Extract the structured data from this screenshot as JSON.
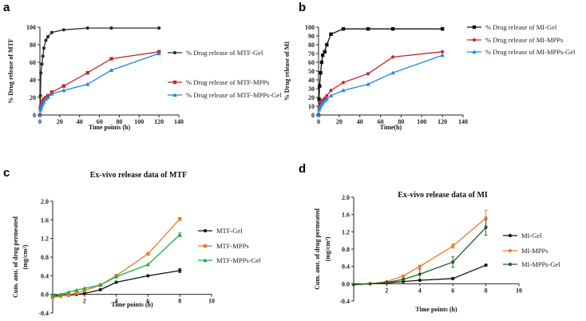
{
  "chart_data": [
    {
      "panel": "a",
      "type": "line",
      "title": "",
      "xlabel": "Time points (h)",
      "ylabel": "% Drug release of MTF",
      "xlim": [
        0,
        140
      ],
      "ylim": [
        0,
        100
      ],
      "xticks": [
        "0",
        "20",
        "40",
        "60",
        "80",
        "100",
        "120",
        "140"
      ],
      "yticks": [
        "0",
        "20",
        "40",
        "60",
        "80",
        "100"
      ],
      "series": [
        {
          "name": "% Drug release of MTF-Gel",
          "color": "#2b2b2b",
          "marker": "circle",
          "x": [
            0,
            0.5,
            1,
            2,
            3,
            4,
            6,
            8,
            12,
            24,
            48,
            72,
            120
          ],
          "y": [
            0,
            22,
            48,
            58,
            67,
            76,
            85,
            89,
            94,
            97,
            99,
            99,
            99
          ]
        },
        {
          "name": "% Drug release of MTF-MPPs",
          "color": "#c62828",
          "marker": "square",
          "x": [
            0,
            0.5,
            1,
            2,
            3,
            4,
            6,
            8,
            12,
            24,
            48,
            72,
            120
          ],
          "y": [
            0,
            8,
            10,
            14,
            16,
            18,
            20,
            22,
            26,
            33,
            48,
            64,
            72
          ]
        },
        {
          "name": "% Drug release of MTF-MPPs-Gel",
          "color": "#1e88e5",
          "marker": "triangle",
          "x": [
            0,
            0.5,
            1,
            2,
            3,
            4,
            6,
            8,
            12,
            24,
            48,
            72,
            120
          ],
          "y": [
            0,
            6,
            8,
            11,
            13,
            15,
            18,
            20,
            24,
            28,
            35,
            51,
            70
          ]
        }
      ]
    },
    {
      "panel": "b",
      "type": "line",
      "title": "",
      "xlabel": "Time(h)",
      "ylabel": "% Drug release of MI",
      "xlim": [
        0,
        140
      ],
      "ylim": [
        0,
        100
      ],
      "xticks": [
        "0",
        "20",
        "40",
        "60",
        "80",
        "100",
        "120",
        "140"
      ],
      "yticks": [
        "0",
        "10",
        "20",
        "30",
        "40",
        "50",
        "60",
        "70",
        "80",
        "90",
        "100"
      ],
      "series": [
        {
          "name": "% Drug release of MI-Gel",
          "color": "#111111",
          "marker": "square",
          "x": [
            0,
            0.5,
            1,
            2,
            3,
            4,
            6,
            8,
            12,
            24,
            48,
            72,
            120
          ],
          "y": [
            0,
            18,
            33,
            48,
            60,
            68,
            72,
            80,
            92,
            98,
            98,
            98,
            98
          ]
        },
        {
          "name": "% Drug release of MI-MPPs",
          "color": "#c62828",
          "marker": "circle",
          "x": [
            0,
            0.5,
            1,
            2,
            3,
            4,
            6,
            8,
            12,
            24,
            48,
            72,
            120
          ],
          "y": [
            0,
            8,
            10,
            13,
            15,
            17,
            19,
            22,
            28,
            37,
            47,
            66,
            72
          ]
        },
        {
          "name": "% Drug release of MI-MPPs-Gel",
          "color": "#1e88e5",
          "marker": "triangle",
          "x": [
            0,
            0.5,
            1,
            2,
            3,
            4,
            6,
            8,
            12,
            24,
            48,
            72,
            120
          ],
          "y": [
            0,
            6,
            8,
            10,
            12,
            14,
            16,
            18,
            22,
            28,
            35,
            48,
            68
          ]
        }
      ]
    },
    {
      "panel": "c",
      "type": "line",
      "title": "Ex-vivo release data of MTF",
      "xlabel": "Time points (h)",
      "ylabel_line1": "Cum. amt. of drug permeated",
      "ylabel_line2": "(mg/cm²)",
      "xlim": [
        0,
        10
      ],
      "ylim": [
        -0.4,
        2.0
      ],
      "xticks": [
        "2",
        "4",
        "6",
        "8",
        "10"
      ],
      "yticks": [
        "-0.4",
        "0.0",
        "0.4",
        "0.8",
        "1.2",
        "1.6",
        "2.0"
      ],
      "series": [
        {
          "name": "MTF-Gel",
          "color": "#111111",
          "marker": "circle",
          "x": [
            0,
            0.5,
            1,
            1.5,
            2,
            3,
            4,
            6,
            8
          ],
          "y": [
            -0.04,
            -0.03,
            -0.02,
            0.0,
            0.02,
            0.1,
            0.26,
            0.4,
            0.51
          ],
          "err": [
            0,
            0,
            0,
            0,
            0,
            0,
            0,
            0,
            0.04
          ]
        },
        {
          "name": "MTF-MPPs",
          "color": "#e67e22",
          "marker": "square",
          "x": [
            0,
            0.5,
            1,
            1.5,
            2,
            3,
            4,
            6,
            8
          ],
          "y": [
            -0.06,
            -0.04,
            -0.01,
            0.03,
            0.08,
            0.2,
            0.4,
            0.87,
            1.62
          ],
          "err": [
            0,
            0,
            0,
            0,
            0,
            0,
            0,
            0,
            0.03
          ]
        },
        {
          "name": "MTF-MPPs-Gel",
          "color": "#1faa4a",
          "marker": "triangle",
          "x": [
            0,
            0.5,
            1,
            1.5,
            2,
            3,
            4,
            6,
            8
          ],
          "y": [
            -0.03,
            0.0,
            0.05,
            0.09,
            0.13,
            0.2,
            0.38,
            0.64,
            1.28
          ],
          "err": [
            0,
            0,
            0,
            0,
            0,
            0,
            0,
            0,
            0.04
          ]
        }
      ]
    },
    {
      "panel": "d",
      "type": "line",
      "title": "Ex-vivo release data of MI",
      "xlabel": "Time points (h)",
      "ylabel_line1": "Cum. amt. of drug permeated",
      "ylabel_line2": "(mg/cm²)",
      "xlim": [
        0,
        10
      ],
      "ylim": [
        -0.4,
        2.0
      ],
      "xticks": [
        "2",
        "4",
        "6",
        "8",
        "10"
      ],
      "yticks": [
        "-0.4",
        "0.0",
        "0.4",
        "0.8",
        "1.2",
        "1.6",
        "2.0"
      ],
      "series": [
        {
          "name": "MI-Gel",
          "color": "#111111",
          "marker": "circle",
          "x": [
            0,
            1,
            2,
            3,
            4,
            6,
            8
          ],
          "y": [
            -0.02,
            0.0,
            0.02,
            0.05,
            0.08,
            0.12,
            0.43
          ],
          "err": [
            0,
            0,
            0,
            0,
            0.02,
            0.02,
            0.02
          ]
        },
        {
          "name": "MI-MPPs",
          "color": "#e67e22",
          "marker": "circle",
          "x": [
            0,
            1,
            2,
            3,
            4,
            6,
            8
          ],
          "y": [
            -0.02,
            0.0,
            0.05,
            0.18,
            0.4,
            0.87,
            1.52
          ],
          "err": [
            0,
            0,
            0,
            0.02,
            0.03,
            0.05,
            0.18
          ]
        },
        {
          "name": "MI-MPPs-Gel",
          "color": "#1b5e20",
          "marker": "circle",
          "x": [
            0,
            1,
            2,
            3,
            4,
            6,
            8
          ],
          "y": [
            -0.02,
            0.0,
            0.03,
            0.1,
            0.22,
            0.5,
            1.3
          ],
          "err": [
            0,
            0,
            0,
            0.03,
            0.12,
            0.12,
            0.18
          ]
        }
      ]
    }
  ]
}
